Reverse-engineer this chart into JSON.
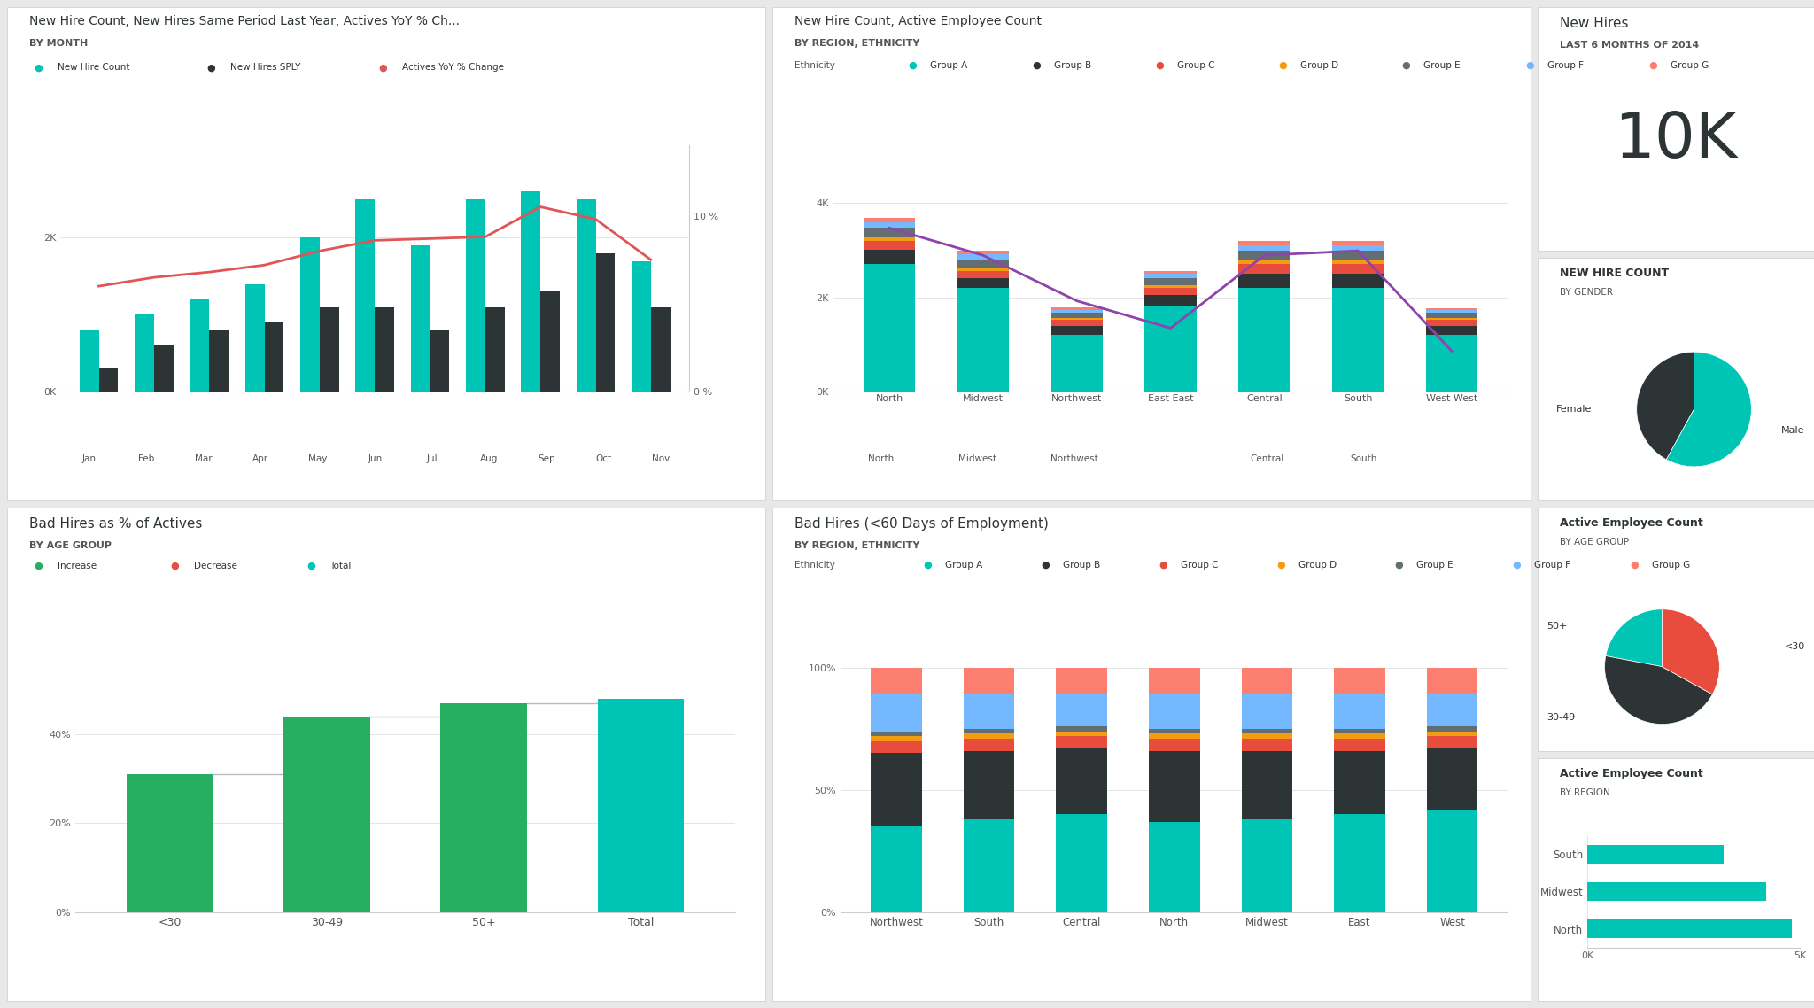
{
  "bg_color": "#e8e8e8",
  "card_bg": "#ffffff",
  "chart1": {
    "title": "New Hire Count, New Hires Same Period Last Year, Actives YoY % Ch...",
    "subtitle": "BY MONTH",
    "months_short": [
      "Jan",
      "Feb",
      "Mar",
      "Apr",
      "May",
      "Jun",
      "Jul",
      "Aug",
      "Sep",
      "Oct",
      "Nov"
    ],
    "months_bot": [
      "Jan",
      "Feb",
      "Mar",
      "Apr",
      "May",
      "Jun",
      "Jul",
      "Aug",
      "Sep",
      "Oct",
      "Nov"
    ],
    "new_hire": [
      800,
      1000,
      1200,
      1400,
      2000,
      2500,
      1900,
      2500,
      2600,
      2500,
      1700
    ],
    "sply": [
      300,
      600,
      800,
      900,
      1100,
      1100,
      800,
      1100,
      1300,
      1800,
      1100
    ],
    "yoy": [
      6.0,
      6.5,
      6.8,
      7.2,
      8.0,
      8.6,
      8.7,
      8.8,
      10.5,
      9.8,
      7.5
    ],
    "new_hire_color": "#00c4b4",
    "sply_color": "#2d3436",
    "yoy_color": "#e05555",
    "legend": [
      "New Hire Count",
      "New Hires SPLY",
      "Actives YoY % Change"
    ]
  },
  "chart2": {
    "title": "New Hire Count, Active Employee Count",
    "subtitle": "BY REGION, ETHNICITY",
    "regions_short": [
      "North",
      "Midwest",
      "Northwest",
      "East East",
      "Central",
      "South",
      "West West"
    ],
    "regions_bot": [
      "North",
      "Midwest",
      "Northwest",
      "",
      "Central",
      "South",
      ""
    ],
    "group_a": [
      2700,
      2200,
      1200,
      1800,
      2200,
      2200,
      1200
    ],
    "group_b": [
      300,
      200,
      200,
      250,
      300,
      300,
      200
    ],
    "group_c": [
      180,
      150,
      120,
      150,
      200,
      200,
      120
    ],
    "group_d": [
      80,
      70,
      50,
      60,
      80,
      80,
      50
    ],
    "group_e": [
      200,
      180,
      100,
      150,
      200,
      200,
      100
    ],
    "group_f": [
      120,
      100,
      60,
      80,
      120,
      120,
      60
    ],
    "group_g": [
      100,
      80,
      50,
      60,
      80,
      80,
      40
    ],
    "line": [
      3600,
      3000,
      2000,
      1400,
      3000,
      3100,
      900
    ],
    "colors": [
      "#00c4b4",
      "#2d3436",
      "#e74c3c",
      "#f39c12",
      "#636e72",
      "#74b9ff",
      "#fd7f6f"
    ],
    "line_color": "#8e44ad",
    "group_labels": [
      "Group A",
      "Group B",
      "Group C",
      "Group D",
      "Group E",
      "Group F",
      "Group G"
    ]
  },
  "chart3": {
    "title": "New Hires",
    "subtitle": "LAST 6 MONTHS OF 2014",
    "value": "10K"
  },
  "chart4": {
    "title": "Bad Hires as % of Actives",
    "subtitle": "BY AGE GROUP",
    "categories": [
      "<30",
      "30-49",
      "50+",
      "Total"
    ],
    "increase": [
      0.31,
      0.44,
      0.47,
      0.0
    ],
    "total": [
      0.0,
      0.0,
      0.0,
      0.48
    ],
    "colors": {
      "increase": "#27ae60",
      "decrease": "#e74c3c",
      "total": "#00c4b4"
    }
  },
  "chart5": {
    "title": "Bad Hires (<60 Days of Employment)",
    "subtitle": "BY REGION, ETHNICITY",
    "regions": [
      "Northwest",
      "South",
      "Central",
      "North",
      "Midwest",
      "East",
      "West"
    ],
    "group_a": [
      0.35,
      0.38,
      0.4,
      0.37,
      0.38,
      0.4,
      0.42
    ],
    "group_b": [
      0.3,
      0.28,
      0.27,
      0.29,
      0.28,
      0.26,
      0.25
    ],
    "group_c": [
      0.05,
      0.05,
      0.05,
      0.05,
      0.05,
      0.05,
      0.05
    ],
    "group_d": [
      0.02,
      0.02,
      0.02,
      0.02,
      0.02,
      0.02,
      0.02
    ],
    "group_e": [
      0.02,
      0.02,
      0.02,
      0.02,
      0.02,
      0.02,
      0.02
    ],
    "group_f": [
      0.15,
      0.14,
      0.13,
      0.14,
      0.14,
      0.14,
      0.13
    ],
    "group_g": [
      0.11,
      0.11,
      0.11,
      0.11,
      0.11,
      0.11,
      0.11
    ],
    "colors": [
      "#00c4b4",
      "#2d3436",
      "#e74c3c",
      "#f39c12",
      "#636e72",
      "#74b9ff",
      "#fd7f6f"
    ],
    "group_labels": [
      "Group A",
      "Group B",
      "Group C",
      "Group D",
      "Group E",
      "Group F",
      "Group G"
    ]
  },
  "chart6": {
    "title": "NEW HIRE COUNT",
    "subtitle": "BY GENDER",
    "values": [
      0.42,
      0.58
    ],
    "colors": [
      "#2d3436",
      "#00c4b4"
    ],
    "labels": [
      "Female",
      "Male"
    ]
  },
  "chart7": {
    "title": "Active Employee Count",
    "subtitle": "BY AGE GROUP",
    "labels": [
      "<30",
      "30-49",
      "50+"
    ],
    "values": [
      0.22,
      0.45,
      0.33
    ],
    "colors": [
      "#00c4b4",
      "#2d3436",
      "#e74c3c"
    ]
  },
  "chart8": {
    "title": "Active Employee Count",
    "subtitle": "BY REGION",
    "regions": [
      "North",
      "Midwest",
      "South"
    ],
    "values": [
      4800,
      4200,
      3200
    ],
    "color": "#00c4b4",
    "xlim": [
      0,
      5000
    ]
  }
}
